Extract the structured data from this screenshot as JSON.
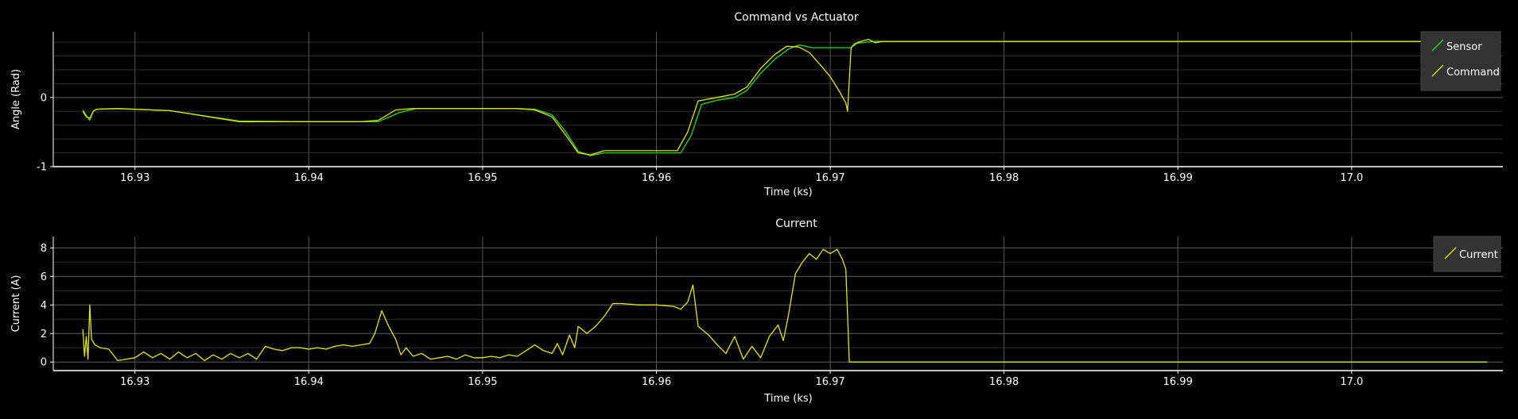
{
  "chart_data": [
    {
      "type": "line",
      "title": "Command vs Actuator",
      "xlabel": "Time (ks)",
      "ylabel": "Angle (Rad)",
      "xlim": [
        16.9253,
        17.0087
      ],
      "ylim": [
        -1.0,
        0.95
      ],
      "xticks": [
        16.93,
        16.94,
        16.95,
        16.96,
        16.97,
        16.98,
        16.99,
        17.0
      ],
      "xtick_labels": [
        "16.93",
        "16.94",
        "16.95",
        "16.96",
        "16.97",
        "16.98",
        "16.99",
        "17.0"
      ],
      "yticks": [
        -1,
        0
      ],
      "ytick_labels": [
        "-1",
        "0"
      ],
      "ygrid_step": 0.2,
      "grid": true,
      "legend_position": "top-right",
      "series": [
        {
          "name": "Sensor",
          "color": "#22dd22",
          "points": [
            [
              16.927,
              -0.18
            ],
            [
              16.9272,
              -0.26
            ],
            [
              16.9274,
              -0.33
            ],
            [
              16.9276,
              -0.2
            ],
            [
              16.9278,
              -0.17
            ],
            [
              16.929,
              -0.16
            ],
            [
              16.932,
              -0.19
            ],
            [
              16.936,
              -0.34
            ],
            [
              16.94,
              -0.35
            ],
            [
              16.943,
              -0.35
            ],
            [
              16.944,
              -0.35
            ],
            [
              16.9452,
              -0.22
            ],
            [
              16.9462,
              -0.16
            ],
            [
              16.95,
              -0.16
            ],
            [
              16.952,
              -0.16
            ],
            [
              16.953,
              -0.17
            ],
            [
              16.954,
              -0.25
            ],
            [
              16.9548,
              -0.5
            ],
            [
              16.9555,
              -0.78
            ],
            [
              16.9562,
              -0.84
            ],
            [
              16.957,
              -0.8
            ],
            [
              16.96,
              -0.8
            ],
            [
              16.9614,
              -0.8
            ],
            [
              16.962,
              -0.55
            ],
            [
              16.9626,
              -0.1
            ],
            [
              16.9635,
              -0.04
            ],
            [
              16.9645,
              0.0
            ],
            [
              16.9652,
              0.1
            ],
            [
              16.966,
              0.35
            ],
            [
              16.9668,
              0.55
            ],
            [
              16.9676,
              0.7
            ],
            [
              16.9682,
              0.76
            ],
            [
              16.969,
              0.72
            ],
            [
              16.97,
              0.72
            ],
            [
              16.9712,
              0.72
            ],
            [
              16.9714,
              0.78
            ],
            [
              16.9725,
              0.81
            ],
            [
              16.98,
              0.81
            ],
            [
              16.99,
              0.81
            ],
            [
              17.0,
              0.81
            ],
            [
              17.0078,
              0.81
            ]
          ]
        },
        {
          "name": "Command",
          "color": "#e6e600",
          "points": [
            [
              16.927,
              -0.2
            ],
            [
              16.9272,
              -0.28
            ],
            [
              16.9274,
              -0.3
            ],
            [
              16.9276,
              -0.2
            ],
            [
              16.9278,
              -0.17
            ],
            [
              16.929,
              -0.16
            ],
            [
              16.932,
              -0.19
            ],
            [
              16.936,
              -0.35
            ],
            [
              16.94,
              -0.35
            ],
            [
              16.943,
              -0.35
            ],
            [
              16.944,
              -0.33
            ],
            [
              16.945,
              -0.18
            ],
            [
              16.946,
              -0.16
            ],
            [
              16.95,
              -0.16
            ],
            [
              16.952,
              -0.16
            ],
            [
              16.953,
              -0.18
            ],
            [
              16.954,
              -0.28
            ],
            [
              16.9548,
              -0.55
            ],
            [
              16.9555,
              -0.8
            ],
            [
              16.9562,
              -0.83
            ],
            [
              16.957,
              -0.77
            ],
            [
              16.96,
              -0.77
            ],
            [
              16.9612,
              -0.77
            ],
            [
              16.9618,
              -0.5
            ],
            [
              16.9624,
              -0.05
            ],
            [
              16.9635,
              0.0
            ],
            [
              16.9645,
              0.05
            ],
            [
              16.9652,
              0.15
            ],
            [
              16.966,
              0.42
            ],
            [
              16.9668,
              0.62
            ],
            [
              16.9675,
              0.74
            ],
            [
              16.9682,
              0.73
            ],
            [
              16.9688,
              0.65
            ],
            [
              16.9694,
              0.48
            ],
            [
              16.97,
              0.3
            ],
            [
              16.9705,
              0.1
            ],
            [
              16.9709,
              -0.08
            ],
            [
              16.971,
              -0.2
            ],
            [
              16.9712,
              0.72
            ],
            [
              16.9716,
              0.8
            ],
            [
              16.9722,
              0.84
            ],
            [
              16.9726,
              0.79
            ],
            [
              16.973,
              0.81
            ],
            [
              16.98,
              0.81
            ],
            [
              16.99,
              0.81
            ],
            [
              17.0,
              0.81
            ],
            [
              17.0078,
              0.81
            ]
          ]
        }
      ]
    },
    {
      "type": "line",
      "title": "Current",
      "xlabel": "Time (ks)",
      "ylabel": "Current (A)",
      "xlim": [
        16.9253,
        17.0087
      ],
      "ylim": [
        -0.6,
        8.8
      ],
      "xticks": [
        16.93,
        16.94,
        16.95,
        16.96,
        16.97,
        16.98,
        16.99,
        17.0
      ],
      "xtick_labels": [
        "16.93",
        "16.94",
        "16.95",
        "16.96",
        "16.97",
        "16.98",
        "16.99",
        "17.0"
      ],
      "yticks": [
        0,
        2,
        4,
        6,
        8
      ],
      "ytick_labels": [
        "0",
        "2",
        "4",
        "6",
        "8"
      ],
      "ygrid_step": 1,
      "grid": true,
      "legend_position": "top-right",
      "series": [
        {
          "name": "Current",
          "color": "#e6e600",
          "points": [
            [
              16.927,
              2.3
            ],
            [
              16.9271,
              0.4
            ],
            [
              16.9272,
              1.8
            ],
            [
              16.9273,
              0.2
            ],
            [
              16.9274,
              4.0
            ],
            [
              16.9275,
              1.6
            ],
            [
              16.9277,
              1.2
            ],
            [
              16.928,
              1.0
            ],
            [
              16.9285,
              0.9
            ],
            [
              16.929,
              0.1
            ],
            [
              16.9295,
              0.2
            ],
            [
              16.93,
              0.3
            ],
            [
              16.9305,
              0.7
            ],
            [
              16.931,
              0.3
            ],
            [
              16.9315,
              0.6
            ],
            [
              16.932,
              0.2
            ],
            [
              16.9325,
              0.7
            ],
            [
              16.933,
              0.3
            ],
            [
              16.9335,
              0.6
            ],
            [
              16.934,
              0.1
            ],
            [
              16.9345,
              0.5
            ],
            [
              16.935,
              0.2
            ],
            [
              16.9355,
              0.6
            ],
            [
              16.936,
              0.3
            ],
            [
              16.9365,
              0.6
            ],
            [
              16.937,
              0.2
            ],
            [
              16.9375,
              1.1
            ],
            [
              16.938,
              0.9
            ],
            [
              16.9385,
              0.8
            ],
            [
              16.939,
              1.0
            ],
            [
              16.9395,
              1.0
            ],
            [
              16.94,
              0.9
            ],
            [
              16.9405,
              1.0
            ],
            [
              16.941,
              0.9
            ],
            [
              16.9415,
              1.1
            ],
            [
              16.942,
              1.2
            ],
            [
              16.9425,
              1.1
            ],
            [
              16.943,
              1.2
            ],
            [
              16.9435,
              1.3
            ],
            [
              16.9438,
              2.0
            ],
            [
              16.9442,
              3.6
            ],
            [
              16.9446,
              2.5
            ],
            [
              16.945,
              1.6
            ],
            [
              16.9453,
              0.5
            ],
            [
              16.9456,
              1.0
            ],
            [
              16.946,
              0.4
            ],
            [
              16.9465,
              0.6
            ],
            [
              16.947,
              0.2
            ],
            [
              16.9475,
              0.3
            ],
            [
              16.948,
              0.4
            ],
            [
              16.9485,
              0.2
            ],
            [
              16.949,
              0.5
            ],
            [
              16.9495,
              0.3
            ],
            [
              16.95,
              0.3
            ],
            [
              16.9505,
              0.4
            ],
            [
              16.951,
              0.3
            ],
            [
              16.9515,
              0.5
            ],
            [
              16.952,
              0.4
            ],
            [
              16.9525,
              0.8
            ],
            [
              16.953,
              1.2
            ],
            [
              16.9535,
              0.8
            ],
            [
              16.954,
              0.6
            ],
            [
              16.9543,
              1.3
            ],
            [
              16.9546,
              0.5
            ],
            [
              16.955,
              1.9
            ],
            [
              16.9553,
              1.0
            ],
            [
              16.9555,
              2.5
            ],
            [
              16.956,
              2.0
            ],
            [
              16.9565,
              2.5
            ],
            [
              16.957,
              3.2
            ],
            [
              16.9575,
              4.1
            ],
            [
              16.958,
              4.1
            ],
            [
              16.959,
              4.0
            ],
            [
              16.96,
              4.0
            ],
            [
              16.961,
              3.9
            ],
            [
              16.9614,
              3.7
            ],
            [
              16.9618,
              4.2
            ],
            [
              16.9621,
              5.4
            ],
            [
              16.9624,
              2.5
            ],
            [
              16.963,
              1.9
            ],
            [
              16.9635,
              1.2
            ],
            [
              16.964,
              0.6
            ],
            [
              16.9645,
              1.8
            ],
            [
              16.965,
              0.2
            ],
            [
              16.9655,
              1.1
            ],
            [
              16.966,
              0.3
            ],
            [
              16.9665,
              1.8
            ],
            [
              16.967,
              2.6
            ],
            [
              16.9673,
              1.5
            ],
            [
              16.9676,
              3.3
            ],
            [
              16.968,
              6.2
            ],
            [
              16.9684,
              7.0
            ],
            [
              16.9688,
              7.6
            ],
            [
              16.9692,
              7.2
            ],
            [
              16.9696,
              7.9
            ],
            [
              16.97,
              7.6
            ],
            [
              16.9704,
              7.9
            ],
            [
              16.9707,
              7.2
            ],
            [
              16.9709,
              6.5
            ],
            [
              16.9711,
              0.0
            ],
            [
              16.98,
              0.0
            ],
            [
              16.99,
              0.0
            ],
            [
              17.0,
              0.0
            ],
            [
              17.0078,
              0.0
            ]
          ]
        }
      ]
    }
  ],
  "colors": {
    "background": "#000000",
    "frame": "#4a4a4a",
    "grid_major": "#575757",
    "grid_minor": "#2e2e2e",
    "text": "#ffffff",
    "legend_bg": "#333333"
  }
}
